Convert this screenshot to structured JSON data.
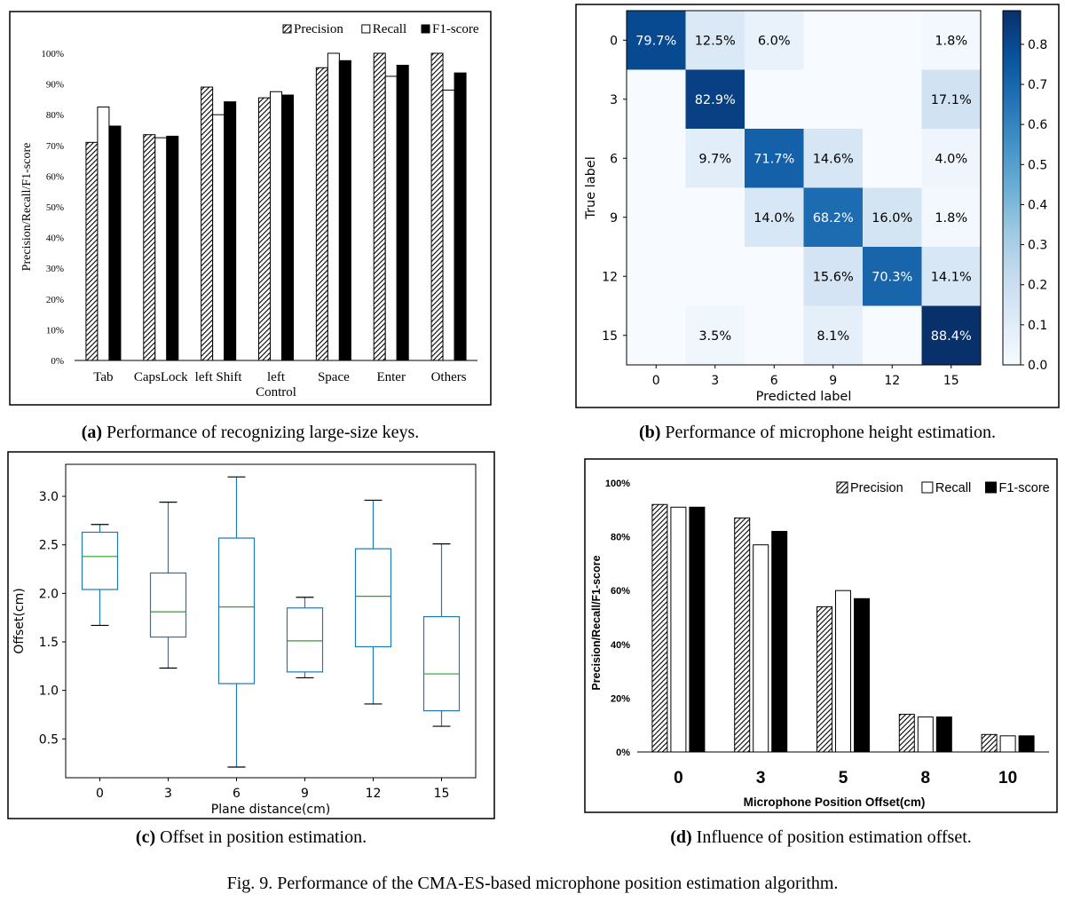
{
  "figure_caption": "Fig. 9.   Performance of the CMA-ES-based microphone position estimation algorithm.",
  "captions": {
    "a": {
      "tag": "(a)",
      "text": "Performance of recognizing large-size keys."
    },
    "b": {
      "tag": "(b)",
      "text": "Performance of microphone height estimation."
    },
    "c": {
      "tag": "(c)",
      "text": "Offset in position estimation."
    },
    "d": {
      "tag": "(d)",
      "text": "Influence of position estimation offset."
    }
  },
  "colors": {
    "bar_white": "#ffffff",
    "bar_black": "#000000",
    "hatch": "#000000",
    "heat_low": "#f7fbff",
    "heat_high": "#08306b",
    "box": "#1f77b4",
    "median": "#2ca02c"
  },
  "chart_data": [
    {
      "id": "a",
      "type": "bar",
      "title": "",
      "xlabel": "",
      "ylabel": "Precision/Recall/F1-score",
      "categories": [
        "Tab",
        "CapsLock",
        "left Shift",
        "left\nControl",
        "Space",
        "Enter",
        "Others"
      ],
      "yticks": [
        "0%",
        "10%",
        "20%",
        "30%",
        "40%",
        "50%",
        "60%",
        "70%",
        "80%",
        "90%",
        "100%"
      ],
      "ylim": [
        0,
        100
      ],
      "legend_position": "top-right",
      "series": [
        {
          "name": "Precision",
          "style": "hatch",
          "values": [
            71,
            73.5,
            89,
            85.5,
            95.3,
            100,
            100
          ]
        },
        {
          "name": "Recall",
          "style": "white",
          "values": [
            82.5,
            72.5,
            80,
            87.5,
            100,
            92.5,
            88
          ]
        },
        {
          "name": "F1-score",
          "style": "black",
          "values": [
            76.3,
            73,
            84.2,
            86.4,
            97.6,
            96.1,
            93.6
          ]
        }
      ]
    },
    {
      "id": "b",
      "type": "heatmap",
      "title": "",
      "xlabel": "Predicted label",
      "ylabel": "True label",
      "x_categories": [
        "0",
        "3",
        "6",
        "9",
        "12",
        "15"
      ],
      "y_categories": [
        "0",
        "3",
        "6",
        "9",
        "12",
        "15"
      ],
      "colorbar_ticks": [
        "0.0",
        "0.1",
        "0.2",
        "0.3",
        "0.4",
        "0.5",
        "0.6",
        "0.7",
        "0.8"
      ],
      "colorbar_range": [
        0,
        0.884
      ],
      "values": [
        [
          0.797,
          0.125,
          0.06,
          null,
          null,
          0.018
        ],
        [
          null,
          0.829,
          null,
          null,
          null,
          0.171
        ],
        [
          null,
          0.097,
          0.717,
          0.146,
          null,
          0.04
        ],
        [
          null,
          null,
          0.14,
          0.682,
          0.16,
          0.018
        ],
        [
          null,
          null,
          null,
          0.156,
          0.703,
          0.141
        ],
        [
          null,
          0.035,
          null,
          0.081,
          null,
          0.884
        ]
      ],
      "labels": [
        [
          "79.7%",
          "12.5%",
          "6.0%",
          "",
          "",
          "1.8%"
        ],
        [
          "",
          "82.9%",
          "",
          "",
          "",
          "17.1%"
        ],
        [
          "",
          "9.7%",
          "71.7%",
          "14.6%",
          "",
          "4.0%"
        ],
        [
          "",
          "",
          "14.0%",
          "68.2%",
          "16.0%",
          "1.8%"
        ],
        [
          "",
          "",
          "",
          "15.6%",
          "70.3%",
          "14.1%"
        ],
        [
          "",
          "3.5%",
          "",
          "8.1%",
          "",
          "88.4%"
        ]
      ]
    },
    {
      "id": "c",
      "type": "box",
      "title": "",
      "xlabel": "Plane distance(cm)",
      "ylabel": "Offset(cm)",
      "categories": [
        "0",
        "3",
        "6",
        "9",
        "12",
        "15"
      ],
      "yticks": [
        "0.5",
        "1.0",
        "1.5",
        "2.0",
        "2.5",
        "3.0"
      ],
      "ylim": [
        0.1,
        3.33
      ],
      "boxes": [
        {
          "min": 1.67,
          "q1": 2.04,
          "median": 2.38,
          "q3": 2.63,
          "max": 2.71
        },
        {
          "min": 1.23,
          "q1": 1.55,
          "median": 1.81,
          "q3": 2.21,
          "max": 2.94
        },
        {
          "min": 0.21,
          "q1": 1.07,
          "median": 1.86,
          "q3": 2.57,
          "max": 3.2
        },
        {
          "min": 1.13,
          "q1": 1.19,
          "median": 1.51,
          "q3": 1.85,
          "max": 1.96
        },
        {
          "min": 0.86,
          "q1": 1.45,
          "median": 1.97,
          "q3": 2.46,
          "max": 2.96
        },
        {
          "min": 0.63,
          "q1": 0.79,
          "median": 1.17,
          "q3": 1.76,
          "max": 2.51
        }
      ]
    },
    {
      "id": "d",
      "type": "bar",
      "title": "",
      "xlabel": "Microphone Position Offset(cm)",
      "ylabel": "Precision/Recall/F1-score",
      "categories": [
        "0",
        "3",
        "5",
        "8",
        "10"
      ],
      "yticks": [
        "0%",
        "20%",
        "40%",
        "60%",
        "80%",
        "100%"
      ],
      "ylim": [
        0,
        100
      ],
      "legend_position": "top-right",
      "series": [
        {
          "name": "Precision",
          "style": "hatch",
          "values": [
            92,
            87,
            54,
            14,
            6.5
          ]
        },
        {
          "name": "Recall",
          "style": "white",
          "values": [
            91,
            77,
            60,
            13,
            6
          ]
        },
        {
          "name": "F1-score",
          "style": "black",
          "values": [
            91,
            82,
            57,
            13,
            6
          ]
        }
      ]
    }
  ]
}
